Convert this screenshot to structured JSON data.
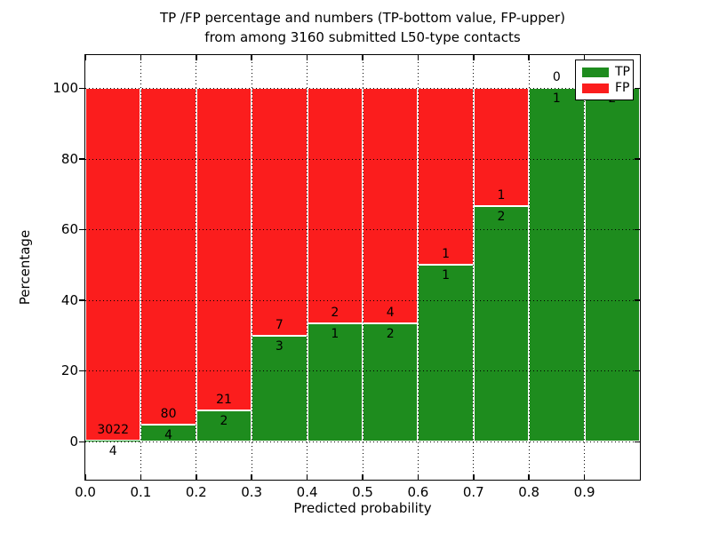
{
  "figure": {
    "title_line1": "TP /FP percentage and numbers (TP-bottom value, FP-upper)",
    "title_line2": "from among 3160 submitted L50-type contacts"
  },
  "chart_data": {
    "type": "bar",
    "subtype": "stacked-percentage-histogram",
    "title": "TP /FP percentage and numbers (TP-bottom value, FP-upper) from among 3160 submitted L50-type contacts",
    "xlabel": "Predicted probability",
    "ylabel": "Percentage",
    "total_submitted_contacts": 3160,
    "bins": [
      {
        "range": [
          0.0,
          0.1
        ],
        "tp": 4,
        "fp": 3022,
        "tp_percent": 0.13
      },
      {
        "range": [
          0.1,
          0.2
        ],
        "tp": 4,
        "fp": 80,
        "tp_percent": 4.76
      },
      {
        "range": [
          0.2,
          0.3
        ],
        "tp": 2,
        "fp": 21,
        "tp_percent": 8.7
      },
      {
        "range": [
          0.3,
          0.4
        ],
        "tp": 3,
        "fp": 7,
        "tp_percent": 30.0
      },
      {
        "range": [
          0.4,
          0.5
        ],
        "tp": 1,
        "fp": 2,
        "tp_percent": 33.33
      },
      {
        "range": [
          0.5,
          0.6
        ],
        "tp": 2,
        "fp": 4,
        "tp_percent": 33.33
      },
      {
        "range": [
          0.6,
          0.7
        ],
        "tp": 1,
        "fp": 1,
        "tp_percent": 50.0
      },
      {
        "range": [
          0.7,
          0.8
        ],
        "tp": 2,
        "fp": 1,
        "tp_percent": 66.67
      },
      {
        "range": [
          0.8,
          0.9
        ],
        "tp": 1,
        "fp": 0,
        "tp_percent": 100.0
      },
      {
        "range": [
          0.9,
          1.0
        ],
        "tp": 2,
        "fp": 0,
        "tp_percent": 100.0
      }
    ],
    "series": [
      {
        "name": "TP",
        "color": "#1e8c1e"
      },
      {
        "name": "FP",
        "color": "#fb1d1d"
      }
    ],
    "xticks": [
      "0.0",
      "0.1",
      "0.2",
      "0.3",
      "0.4",
      "0.5",
      "0.6",
      "0.7",
      "0.8",
      "0.9"
    ],
    "xtick_values": [
      0.0,
      0.1,
      0.2,
      0.3,
      0.4,
      0.5,
      0.6,
      0.7,
      0.8,
      0.9
    ],
    "yticks": [
      "0",
      "20",
      "40",
      "60",
      "80",
      "100"
    ],
    "ytick_values": [
      0,
      20,
      40,
      60,
      80,
      100
    ],
    "xlim": [
      0.0,
      1.0
    ],
    "ylim": [
      -10.8,
      109.3
    ],
    "grid": true,
    "grid_style": "dotted",
    "legend": {
      "position": "upper right",
      "entries": [
        {
          "label": "TP",
          "color": "#1e8c1e"
        },
        {
          "label": "FP",
          "color": "#fb1d1d"
        }
      ]
    }
  }
}
